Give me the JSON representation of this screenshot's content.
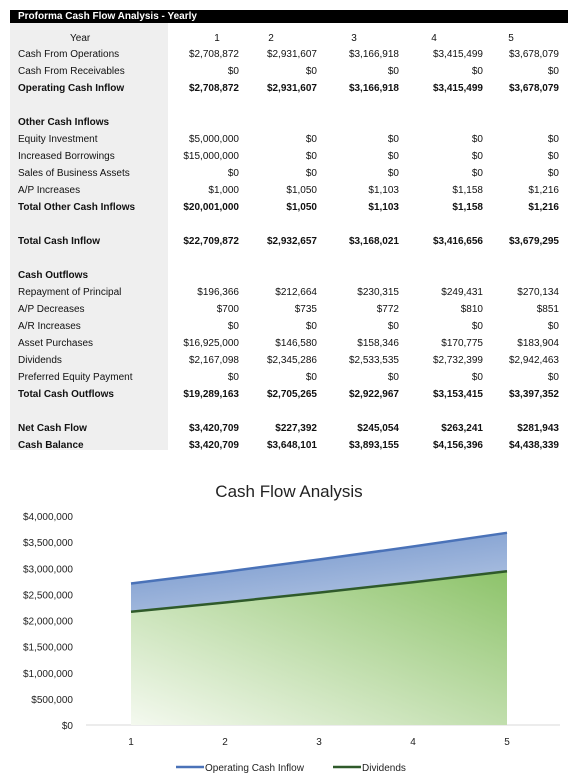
{
  "table": {
    "title": "Proforma Cash Flow Analysis - Yearly",
    "header": {
      "label": "Year",
      "years": [
        "1",
        "2",
        "3",
        "4",
        "5"
      ]
    },
    "rows": [
      {
        "label": "Cash From Operations",
        "values": [
          "$2,708,872",
          "$2,931,607",
          "$3,166,918",
          "$3,415,499",
          "$3,678,079"
        ]
      },
      {
        "label": "Cash From Receivables",
        "values": [
          "$0",
          "$0",
          "$0",
          "$0",
          "$0"
        ]
      },
      {
        "label": "Operating Cash Inflow",
        "values": [
          "$2,708,872",
          "$2,931,607",
          "$3,166,918",
          "$3,415,499",
          "$3,678,079"
        ]
      },
      {
        "label": "Other Cash Inflows",
        "values": [
          "",
          "",
          "",
          "",
          ""
        ]
      },
      {
        "label": "Equity Investment",
        "values": [
          "$5,000,000",
          "$0",
          "$0",
          "$0",
          "$0"
        ]
      },
      {
        "label": "Increased Borrowings",
        "values": [
          "$15,000,000",
          "$0",
          "$0",
          "$0",
          "$0"
        ]
      },
      {
        "label": "Sales of Business Assets",
        "values": [
          "$0",
          "$0",
          "$0",
          "$0",
          "$0"
        ]
      },
      {
        "label": "A/P Increases",
        "values": [
          "$1,000",
          "$1,050",
          "$1,103",
          "$1,158",
          "$1,216"
        ]
      },
      {
        "label": "Total Other Cash Inflows",
        "values": [
          "$20,001,000",
          "$1,050",
          "$1,103",
          "$1,158",
          "$1,216"
        ]
      },
      {
        "label": "Total Cash Inflow",
        "values": [
          "$22,709,872",
          "$2,932,657",
          "$3,168,021",
          "$3,416,656",
          "$3,679,295"
        ]
      },
      {
        "label": "Cash Outflows",
        "values": [
          "",
          "",
          "",
          "",
          ""
        ]
      },
      {
        "label": "Repayment of Principal",
        "values": [
          "$196,366",
          "$212,664",
          "$230,315",
          "$249,431",
          "$270,134"
        ]
      },
      {
        "label": "A/P Decreases",
        "values": [
          "$700",
          "$735",
          "$772",
          "$810",
          "$851"
        ]
      },
      {
        "label": "A/R Increases",
        "values": [
          "$0",
          "$0",
          "$0",
          "$0",
          "$0"
        ]
      },
      {
        "label": "Asset Purchases",
        "values": [
          "$16,925,000",
          "$146,580",
          "$158,346",
          "$170,775",
          "$183,904"
        ]
      },
      {
        "label": "Dividends",
        "values": [
          "$2,167,098",
          "$2,345,286",
          "$2,533,535",
          "$2,732,399",
          "$2,942,463"
        ]
      },
      {
        "label": "Preferred Equity Payment",
        "values": [
          "$0",
          "$0",
          "$0",
          "$0",
          "$0"
        ]
      },
      {
        "label": "Total Cash Outflows",
        "values": [
          "$19,289,163",
          "$2,705,265",
          "$2,922,967",
          "$3,153,415",
          "$3,397,352"
        ]
      },
      {
        "label": "Net Cash Flow",
        "values": [
          "$3,420,709",
          "$227,392",
          "$245,054",
          "$263,241",
          "$281,943"
        ]
      },
      {
        "label": "Cash Balance",
        "values": [
          "$3,420,709",
          "$3,648,101",
          "$3,893,155",
          "$4,156,396",
          "$4,438,339"
        ]
      }
    ]
  },
  "chart_data": {
    "type": "area",
    "title": "Cash Flow Analysis",
    "x": [
      1,
      2,
      3,
      4,
      5
    ],
    "series": [
      {
        "name": "Operating Cash Inflow",
        "values": [
          2708872,
          2931607,
          3166918,
          3415499,
          3678079
        ],
        "color": "#4a72b8"
      },
      {
        "name": "Dividends",
        "values": [
          2167098,
          2345286,
          2533535,
          2732399,
          2942463
        ],
        "color": "#2f5a2a"
      }
    ],
    "ylim": [
      0,
      4000000
    ],
    "yticks": [
      "$0",
      "$500,000",
      "$1,000,000",
      "$1,500,000",
      "$2,000,000",
      "$2,500,000",
      "$3,000,000",
      "$3,500,000",
      "$4,000,000"
    ],
    "xticks": [
      "1",
      "2",
      "3",
      "4",
      "5"
    ],
    "grid": false,
    "legend": "bottom"
  }
}
